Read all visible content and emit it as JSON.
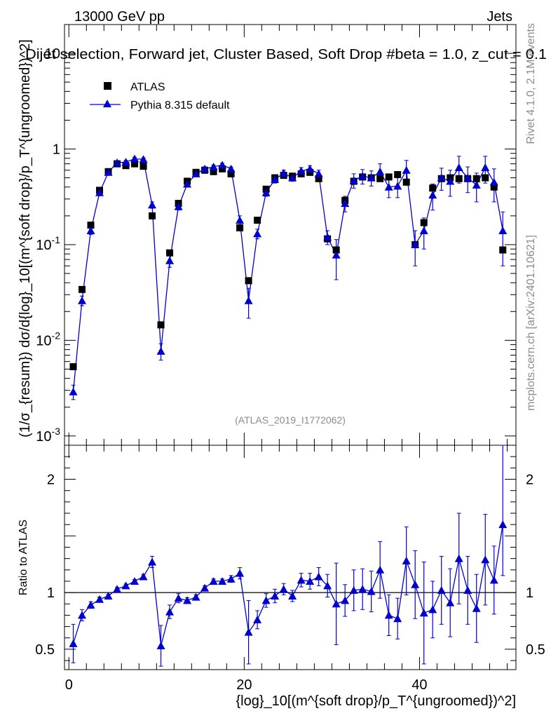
{
  "header": {
    "energy_label": "13000 GeV pp",
    "category_label": "Jets",
    "selection_title": "Dijet selection, Forward jet, Cluster Based, Soft Drop #beta = 1.0, z_cut = 0.1",
    "watermark": "(ATLAS_2019_I1772062)"
  },
  "side_labels": {
    "rivet": "Rivet 4.1.0,  2.1M events",
    "mcplots": "mcplots.cern.ch [arXiv:2401.10621]"
  },
  "legend": {
    "data_label": "ATLAS",
    "mc_label": "Pythia 8.315 default"
  },
  "colors": {
    "data": "#000000",
    "mc": "#0000cc",
    "refline": "#000000"
  },
  "chart_data": [
    {
      "type": "scatter",
      "panel": "main",
      "yscale": "log",
      "ylim": [
        0.0008,
        20
      ],
      "xlim": [
        -0.5,
        51
      ],
      "ylabel": "(1/σ_{resum}) dσ/d{log}_10[(m^{soft drop}/p_T^{ungroomed})^2]",
      "ytick_labels": [
        "10^-3",
        "10^-2",
        "10^-1",
        "1",
        "10"
      ],
      "ytick_values": [
        0.001,
        0.01,
        0.1,
        1,
        10
      ],
      "series": [
        {
          "name": "ATLAS",
          "x": [
            0.5,
            1.5,
            2.5,
            3.5,
            4.5,
            5.5,
            6.5,
            7.5,
            8.5,
            9.5,
            10.5,
            11.5,
            12.5,
            13.5,
            14.5,
            15.5,
            16.5,
            17.5,
            18.5,
            19.5,
            20.5,
            21.5,
            22.5,
            23.5,
            24.5,
            25.5,
            26.5,
            27.5,
            28.5,
            29.5,
            30.5,
            31.5,
            32.5,
            33.5,
            34.5,
            35.5,
            36.5,
            37.5,
            38.5,
            39.5,
            40.5,
            41.5,
            42.5,
            43.5,
            44.5,
            45.5,
            46.5,
            47.5,
            48.5,
            49.5
          ],
          "values": [
            0.0053,
            0.034,
            0.16,
            0.37,
            0.58,
            0.7,
            0.67,
            0.7,
            0.66,
            0.2,
            0.0145,
            0.082,
            0.27,
            0.46,
            0.57,
            0.6,
            0.58,
            0.62,
            0.55,
            0.15,
            0.042,
            0.18,
            0.38,
            0.5,
            0.53,
            0.52,
            0.55,
            0.57,
            0.49,
            0.115,
            0.088,
            0.29,
            0.46,
            0.51,
            0.5,
            0.49,
            0.51,
            0.54,
            0.45,
            0.1,
            0.17,
            0.39,
            0.49,
            0.5,
            0.49,
            0.49,
            0.49,
            0.5,
            0.4,
            0.088
          ]
        },
        {
          "name": "Pythia 8.315 default",
          "x": [
            0.5,
            1.5,
            2.5,
            3.5,
            4.5,
            5.5,
            6.5,
            7.5,
            8.5,
            9.5,
            10.5,
            11.5,
            12.5,
            13.5,
            14.5,
            15.5,
            16.5,
            17.5,
            18.5,
            19.5,
            20.5,
            21.5,
            22.5,
            23.5,
            24.5,
            25.5,
            26.5,
            27.5,
            28.5,
            29.5,
            30.5,
            31.5,
            32.5,
            33.5,
            34.5,
            35.5,
            36.5,
            37.5,
            38.5,
            39.5,
            40.5,
            41.5,
            42.5,
            43.5,
            44.5,
            45.5,
            46.5,
            47.5,
            48.5,
            49.5
          ],
          "values": [
            0.0029,
            0.026,
            0.14,
            0.35,
            0.57,
            0.72,
            0.73,
            0.79,
            0.78,
            0.26,
            0.0077,
            0.068,
            0.25,
            0.43,
            0.55,
            0.62,
            0.65,
            0.68,
            0.62,
            0.18,
            0.026,
            0.13,
            0.35,
            0.48,
            0.56,
            0.5,
            0.59,
            0.62,
            0.55,
            0.12,
            0.078,
            0.27,
            0.47,
            0.52,
            0.5,
            0.58,
            0.4,
            0.41,
            0.6,
            0.1,
            0.14,
            0.33,
            0.5,
            0.46,
            0.64,
            0.5,
            0.42,
            0.64,
            0.45,
            0.14
          ],
          "err_low": [
            0.0005,
            0.003,
            0.012,
            0.025,
            0.03,
            0.03,
            0.03,
            0.03,
            0.03,
            0.02,
            0.0015,
            0.01,
            0.02,
            0.03,
            0.03,
            0.03,
            0.03,
            0.03,
            0.03,
            0.02,
            0.009,
            0.015,
            0.03,
            0.04,
            0.04,
            0.04,
            0.05,
            0.05,
            0.05,
            0.02,
            0.035,
            0.05,
            0.08,
            0.09,
            0.09,
            0.12,
            0.09,
            0.1,
            0.16,
            0.04,
            0.05,
            0.1,
            0.13,
            0.14,
            0.2,
            0.15,
            0.14,
            0.2,
            0.17,
            0.08
          ],
          "err_high": [
            0.0005,
            0.003,
            0.012,
            0.025,
            0.03,
            0.03,
            0.03,
            0.03,
            0.03,
            0.02,
            0.0015,
            0.01,
            0.02,
            0.03,
            0.03,
            0.03,
            0.03,
            0.03,
            0.03,
            0.02,
            0.009,
            0.015,
            0.03,
            0.04,
            0.04,
            0.04,
            0.05,
            0.05,
            0.05,
            0.02,
            0.035,
            0.05,
            0.08,
            0.09,
            0.09,
            0.12,
            0.09,
            0.1,
            0.16,
            0.04,
            0.05,
            0.1,
            0.13,
            0.14,
            0.2,
            0.15,
            0.14,
            0.2,
            0.17,
            0.08
          ]
        }
      ]
    },
    {
      "type": "line",
      "panel": "ratio",
      "ylim": [
        0.32,
        2.3
      ],
      "xlim": [
        -0.5,
        51
      ],
      "ylabel": "Ratio to ATLAS",
      "xlabel": "{log}_10[(m^{soft drop}/p_T^{ungroomed})^2]",
      "xtick_labels": [
        "0",
        "20",
        "40"
      ],
      "xtick_values": [
        0,
        20,
        40
      ],
      "ytick_labels": [
        "0.5",
        "1",
        "2"
      ],
      "ytick_values": [
        0.5,
        1,
        2
      ],
      "reference": 1,
      "series": [
        {
          "name": "Pythia 8.315 default / ATLAS",
          "x": [
            0.5,
            1.5,
            2.5,
            3.5,
            4.5,
            5.5,
            6.5,
            7.5,
            8.5,
            9.5,
            10.5,
            11.5,
            12.5,
            13.5,
            14.5,
            15.5,
            16.5,
            17.5,
            18.5,
            19.5,
            20.5,
            21.5,
            22.5,
            23.5,
            24.5,
            25.5,
            26.5,
            27.5,
            28.5,
            29.5,
            30.5,
            31.5,
            32.5,
            33.5,
            34.5,
            35.5,
            36.5,
            37.5,
            38.5,
            39.5,
            40.5,
            41.5,
            42.5,
            43.5,
            44.5,
            45.5,
            46.5,
            47.5,
            48.5,
            49.5
          ],
          "values": [
            0.55,
            0.8,
            0.89,
            0.94,
            0.97,
            1.03,
            1.06,
            1.1,
            1.14,
            1.27,
            0.53,
            0.83,
            0.95,
            0.93,
            0.96,
            1.04,
            1.1,
            1.1,
            1.12,
            1.17,
            0.65,
            0.76,
            0.93,
            0.97,
            1.03,
            0.97,
            1.11,
            1.1,
            1.14,
            1.06,
            0.9,
            0.93,
            1.02,
            1.03,
            1.01,
            1.2,
            0.8,
            0.77,
            1.28,
            1.07,
            0.82,
            0.85,
            1.02,
            0.91,
            1.3,
            1.02,
            0.86,
            1.29,
            1.11,
            1.6
          ],
          "err_low": [
            0.17,
            0.05,
            0.03,
            0.02,
            0.015,
            0.015,
            0.015,
            0.015,
            0.02,
            0.05,
            0.18,
            0.06,
            0.04,
            0.025,
            0.02,
            0.02,
            0.02,
            0.02,
            0.03,
            0.05,
            0.28,
            0.08,
            0.06,
            0.06,
            0.05,
            0.05,
            0.06,
            0.07,
            0.08,
            0.1,
            0.36,
            0.14,
            0.18,
            0.18,
            0.18,
            0.25,
            0.18,
            0.18,
            0.3,
            0.3,
            0.45,
            0.25,
            0.3,
            0.3,
            0.4,
            0.3,
            0.3,
            0.4,
            0.3,
            0.45
          ],
          "err_high": [
            0.17,
            0.05,
            0.03,
            0.02,
            0.015,
            0.015,
            0.015,
            0.015,
            0.02,
            0.05,
            0.18,
            0.06,
            0.04,
            0.025,
            0.02,
            0.02,
            0.02,
            0.02,
            0.03,
            0.05,
            0.28,
            0.08,
            0.06,
            0.06,
            0.05,
            0.05,
            0.06,
            0.07,
            0.08,
            0.1,
            0.36,
            0.14,
            0.18,
            0.18,
            0.18,
            0.25,
            0.18,
            0.18,
            0.3,
            0.3,
            0.45,
            0.25,
            0.3,
            0.3,
            0.4,
            0.3,
            0.3,
            0.4,
            0.3,
            0.7
          ]
        }
      ]
    }
  ]
}
